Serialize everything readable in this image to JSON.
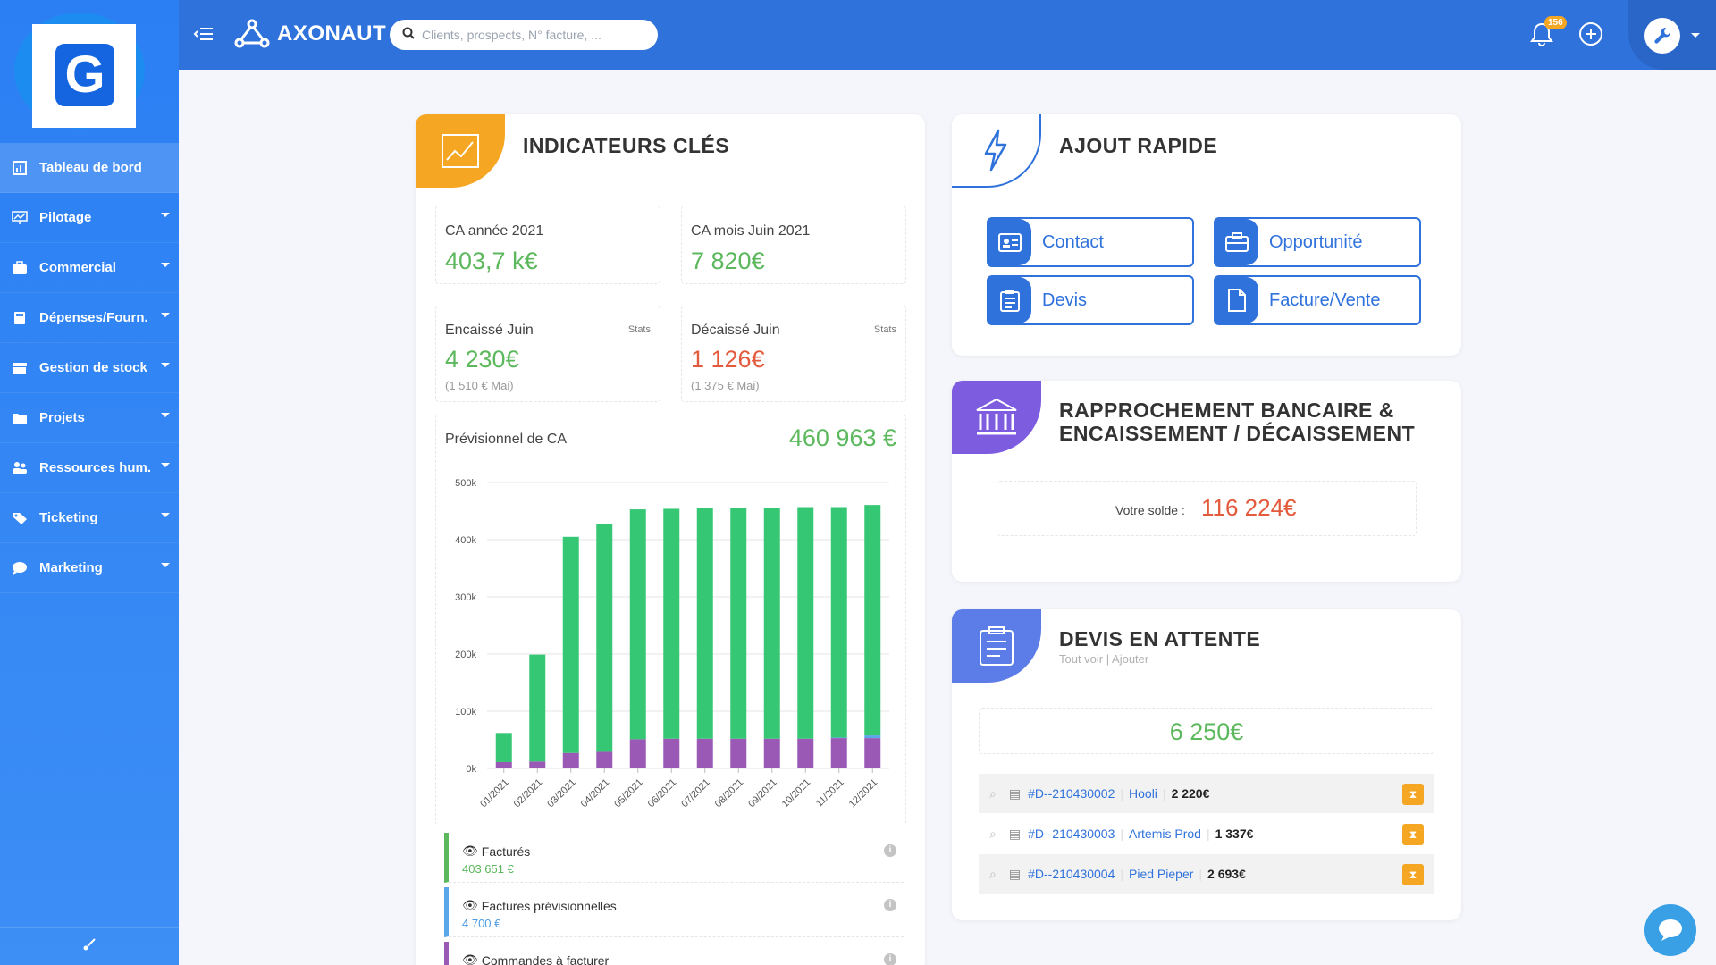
{
  "brand": {
    "name": "AXONAUT",
    "logo_letter": "G"
  },
  "search": {
    "placeholder": "Clients, prospects, N° facture, ..."
  },
  "notifications": {
    "count": "156"
  },
  "sidebar": {
    "items": [
      {
        "label": "Tableau de bord",
        "icon": "dashboard-icon"
      },
      {
        "label": "Pilotage",
        "icon": "chart-board-icon"
      },
      {
        "label": "Commercial",
        "icon": "briefcase-icon"
      },
      {
        "label": "Dépenses/Fourn.",
        "icon": "calculator-icon"
      },
      {
        "label": "Gestion de stock",
        "icon": "box-icon"
      },
      {
        "label": "Projets",
        "icon": "folder-icon"
      },
      {
        "label": "Ressources hum.",
        "icon": "users-icon"
      },
      {
        "label": "Ticketing",
        "icon": "tag-icon"
      },
      {
        "label": "Marketing",
        "icon": "speech-bubble-icon"
      }
    ]
  },
  "indicators": {
    "title": "INDICATEURS CLÉS",
    "ca_year": {
      "label": "CA année 2021",
      "value": "403,7 k€"
    },
    "ca_month": {
      "label": "CA mois Juin 2021",
      "value": "7 820€"
    },
    "encaisse": {
      "label": "Encaissé Juin",
      "value": "4 230€",
      "sub": "(1 510 € Mai)",
      "stats": "Stats"
    },
    "decaisse": {
      "label": "Décaissé Juin",
      "value": "1 126€",
      "sub": "(1 375 € Mai)",
      "stats": "Stats"
    },
    "forecast": {
      "label": "Prévisionnel de CA",
      "value": "460 963 €"
    },
    "legend": [
      {
        "name": "Facturés",
        "value": "403 651 €",
        "color": "#5cb85c"
      },
      {
        "name": "Factures prévisionnelles",
        "value": "4 700 €",
        "color": "#5aa7ea"
      },
      {
        "name": "Commandes à facturer",
        "value": "",
        "color": "#9b59b6"
      }
    ]
  },
  "chart_data": {
    "type": "bar",
    "stacked": true,
    "categories": [
      "01/2021",
      "02/2021",
      "03/2021",
      "04/2021",
      "05/2021",
      "06/2021",
      "07/2021",
      "08/2021",
      "09/2021",
      "10/2021",
      "11/2021",
      "12/2021"
    ],
    "series": [
      {
        "color": "#9b59b6",
        "values": [
          11000,
          12000,
          27000,
          29000,
          51000,
          52000,
          52000,
          52000,
          52000,
          52000,
          53000,
          53000
        ]
      },
      {
        "color": "#5aa7ea",
        "values": [
          0,
          0,
          0,
          0,
          0,
          0,
          0,
          0,
          0,
          0,
          1000,
          4700
        ]
      },
      {
        "color": "#35c773",
        "values": [
          51000,
          187000,
          378000,
          399000,
          402000,
          402000,
          404000,
          404000,
          404000,
          405000,
          403000,
          403000
        ]
      }
    ],
    "yticks": [
      "0k",
      "100k",
      "200k",
      "300k",
      "400k",
      "500k"
    ],
    "ylim": [
      0,
      500000
    ],
    "grid": true
  },
  "quick_add": {
    "title": "AJOUT RAPIDE",
    "buttons": [
      {
        "label": "Contact",
        "icon": "contact-card-icon"
      },
      {
        "label": "Opportunité",
        "icon": "briefcase-icon"
      },
      {
        "label": "Devis",
        "icon": "clipboard-icon"
      },
      {
        "label": "Facture/Vente",
        "icon": "document-icon"
      }
    ]
  },
  "bank": {
    "title_line1": "RAPPROCHEMENT BANCAIRE &",
    "title_line2": "ENCAISSEMENT / DÉCAISSEMENT",
    "balance_label": "Votre solde :",
    "balance_value": "116 224€"
  },
  "pending_quotes": {
    "title": "DEVIS EN ATTENTE",
    "link_all": "Tout voir",
    "link_add": "Ajouter",
    "total": "6 250€",
    "rows": [
      {
        "ref": "#D--210430002",
        "client": "Hooli",
        "amount": "2 220€"
      },
      {
        "ref": "#D--210430003",
        "client": "Artemis Prod",
        "amount": "1 337€"
      },
      {
        "ref": "#D--210430004",
        "client": "Pied Pieper",
        "amount": "2 693€"
      }
    ]
  }
}
